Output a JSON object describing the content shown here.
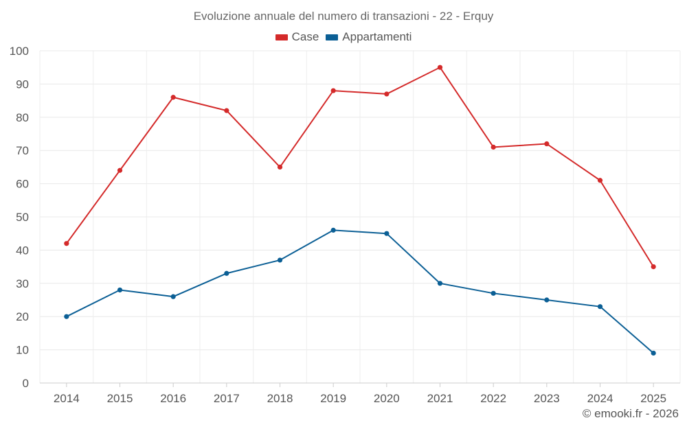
{
  "chart_data": {
    "type": "line",
    "title": "Evoluzione annuale del numero di transazioni - 22 - Erquy",
    "categories": [
      "2014",
      "2015",
      "2016",
      "2017",
      "2018",
      "2019",
      "2020",
      "2021",
      "2022",
      "2023",
      "2024",
      "2025"
    ],
    "series": [
      {
        "name": "Case",
        "color": "#d42a2a",
        "values": [
          42,
          64,
          86,
          82,
          65,
          88,
          87,
          95,
          71,
          72,
          61,
          35
        ]
      },
      {
        "name": "Appartamenti",
        "color": "#0b5f95",
        "values": [
          20,
          28,
          26,
          33,
          37,
          46,
          45,
          30,
          27,
          25,
          23,
          9
        ]
      }
    ],
    "yticks": [
      0,
      10,
      20,
      30,
      40,
      50,
      60,
      70,
      80,
      90,
      100
    ],
    "ylim": [
      0,
      100
    ],
    "xlabel": "",
    "ylabel": "",
    "grid": true,
    "legend_position": "top-center"
  },
  "footer": {
    "credit": "© emooki.fr - 2026"
  }
}
